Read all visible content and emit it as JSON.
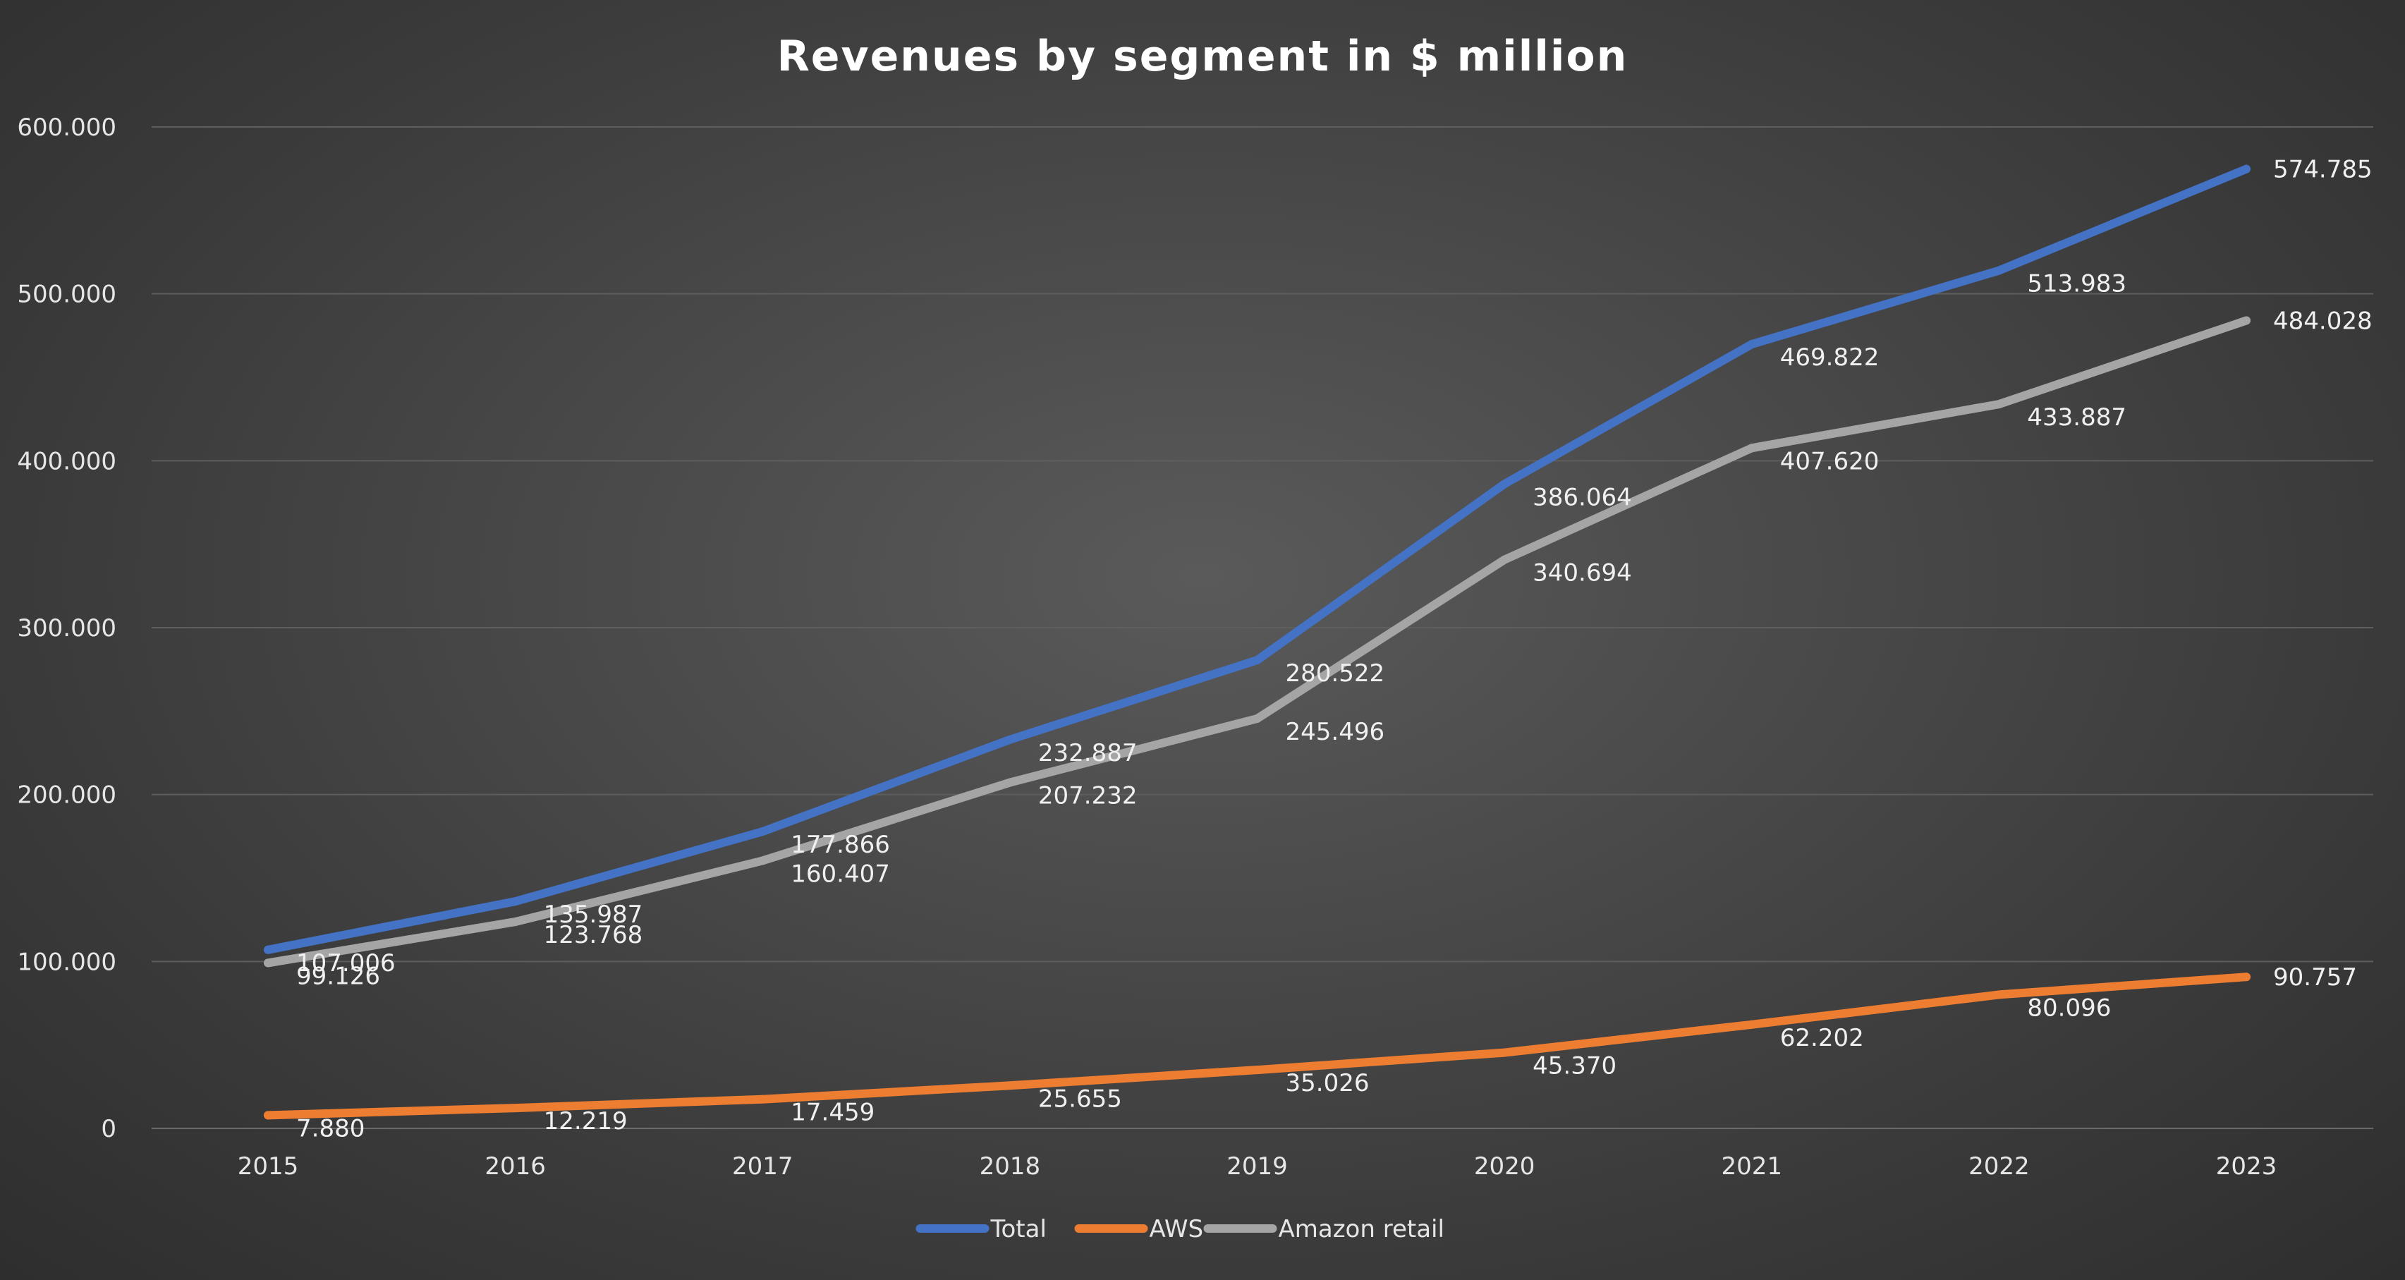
{
  "chart_data": {
    "type": "line",
    "title": "Revenues by segment in $ million",
    "xlabel": "",
    "ylabel": "",
    "categories": [
      "2015",
      "2016",
      "2017",
      "2018",
      "2019",
      "2020",
      "2021",
      "2022",
      "2023"
    ],
    "ylim": [
      0,
      600000
    ],
    "yticks": [
      0,
      100000,
      200000,
      300000,
      400000,
      500000,
      600000
    ],
    "ytick_labels": [
      "0",
      "100.000",
      "200.000",
      "300.000",
      "400.000",
      "500.000",
      "600.000"
    ],
    "grid": true,
    "legend_position": "bottom",
    "series": [
      {
        "name": "Total",
        "color": "#4472c4",
        "values": [
          107006,
          135987,
          177866,
          232887,
          280522,
          386064,
          469822,
          513983,
          574785
        ],
        "labels": [
          "107.006",
          "135.987",
          "177.866",
          "232.887",
          "280.522",
          "386.064",
          "469.822",
          "513.983",
          "574.785"
        ]
      },
      {
        "name": "AWS",
        "color": "#ed7d31",
        "values": [
          7880,
          12219,
          17459,
          25655,
          35026,
          45370,
          62202,
          80096,
          90757
        ],
        "labels": [
          "7.880",
          "12.219",
          "17.459",
          "25.655",
          "35.026",
          "45.370",
          "62.202",
          "80.096",
          "90.757"
        ]
      },
      {
        "name": "Amazon retail",
        "color": "#a5a5a5",
        "values": [
          99126,
          123768,
          160407,
          207232,
          245496,
          340694,
          407620,
          433887,
          484028
        ],
        "labels": [
          "99.126",
          "123.768",
          "160.407",
          "207.232",
          "245.496",
          "340.694",
          "407.620",
          "433.887",
          "484.028"
        ]
      }
    ]
  }
}
